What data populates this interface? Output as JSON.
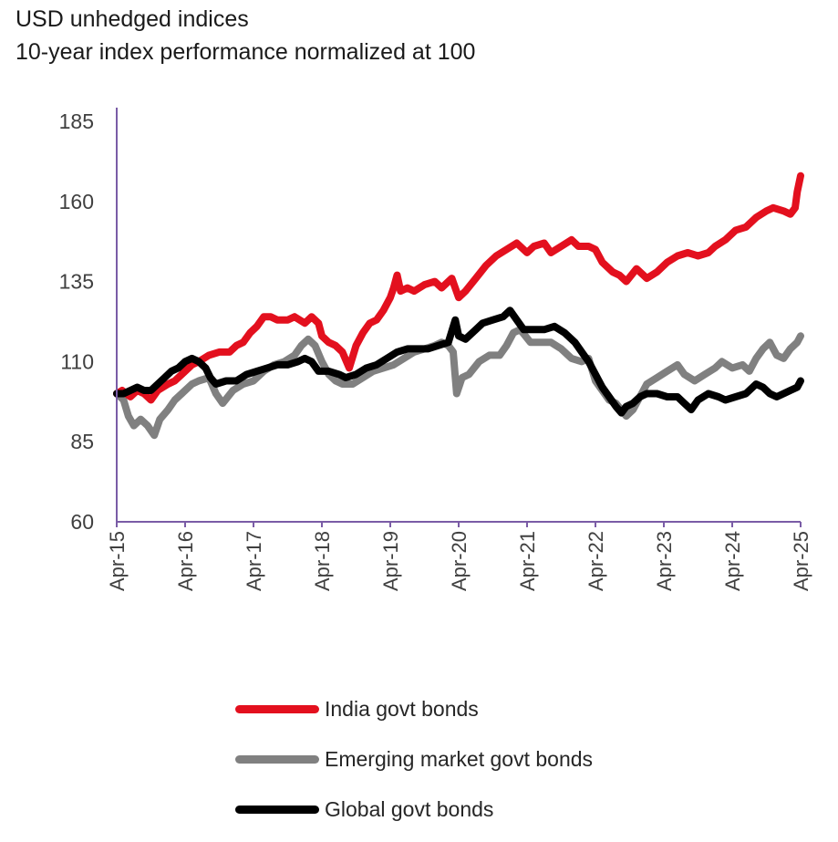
{
  "header": {
    "title": "USD unhedged indices",
    "subtitle": "10-year index performance normalized at 100"
  },
  "chart_data": {
    "type": "line",
    "title": "USD unhedged indices",
    "subtitle": "10-year index performance normalized at 100",
    "ylim": [
      60,
      185
    ],
    "yticks": [
      60,
      85,
      110,
      135,
      160,
      185
    ],
    "xlim": [
      2015.25,
      2025.25
    ],
    "xticks": [
      {
        "label": "Apr-15",
        "x": 2015.25
      },
      {
        "label": "Apr-16",
        "x": 2016.25
      },
      {
        "label": "Apr-17",
        "x": 2017.25
      },
      {
        "label": "Apr-18",
        "x": 2018.25
      },
      {
        "label": "Apr-19",
        "x": 2019.25
      },
      {
        "label": "Apr-20",
        "x": 2020.25
      },
      {
        "label": "Apr-21",
        "x": 2021.25
      },
      {
        "label": "Apr-22",
        "x": 2022.25
      },
      {
        "label": "Apr-23",
        "x": 2023.25
      },
      {
        "label": "Apr-24",
        "x": 2024.25
      },
      {
        "label": "Apr-25",
        "x": 2025.25
      }
    ],
    "grid": false,
    "legend_position": "bottom",
    "series": [
      {
        "name": "India govt bonds",
        "color": "#e3101e",
        "points": [
          [
            2015.25,
            100
          ],
          [
            2015.33,
            101
          ],
          [
            2015.45,
            99
          ],
          [
            2015.55,
            101
          ],
          [
            2015.65,
            100
          ],
          [
            2015.75,
            98
          ],
          [
            2015.85,
            101
          ],
          [
            2016.0,
            103
          ],
          [
            2016.1,
            104
          ],
          [
            2016.2,
            106
          ],
          [
            2016.35,
            109
          ],
          [
            2016.45,
            110
          ],
          [
            2016.6,
            112
          ],
          [
            2016.75,
            113
          ],
          [
            2016.9,
            113
          ],
          [
            2017.0,
            115
          ],
          [
            2017.1,
            116
          ],
          [
            2017.2,
            119
          ],
          [
            2017.3,
            121
          ],
          [
            2017.4,
            124
          ],
          [
            2017.5,
            124
          ],
          [
            2017.6,
            123
          ],
          [
            2017.75,
            123
          ],
          [
            2017.85,
            124
          ],
          [
            2018.0,
            122
          ],
          [
            2018.1,
            124
          ],
          [
            2018.2,
            122
          ],
          [
            2018.25,
            118
          ],
          [
            2018.35,
            116
          ],
          [
            2018.45,
            115
          ],
          [
            2018.55,
            113
          ],
          [
            2018.65,
            108
          ],
          [
            2018.75,
            115
          ],
          [
            2018.85,
            119
          ],
          [
            2018.95,
            122
          ],
          [
            2019.05,
            123
          ],
          [
            2019.15,
            126
          ],
          [
            2019.25,
            130
          ],
          [
            2019.3,
            133
          ],
          [
            2019.35,
            137
          ],
          [
            2019.4,
            132
          ],
          [
            2019.5,
            133
          ],
          [
            2019.6,
            132
          ],
          [
            2019.75,
            134
          ],
          [
            2019.9,
            135
          ],
          [
            2020.0,
            133
          ],
          [
            2020.15,
            136
          ],
          [
            2020.25,
            130
          ],
          [
            2020.35,
            132
          ],
          [
            2020.5,
            136
          ],
          [
            2020.65,
            140
          ],
          [
            2020.8,
            143
          ],
          [
            2020.95,
            145
          ],
          [
            2021.1,
            147
          ],
          [
            2021.25,
            144
          ],
          [
            2021.35,
            146
          ],
          [
            2021.5,
            147
          ],
          [
            2021.6,
            144
          ],
          [
            2021.75,
            146
          ],
          [
            2021.9,
            148
          ],
          [
            2022.0,
            146
          ],
          [
            2022.15,
            146
          ],
          [
            2022.25,
            145
          ],
          [
            2022.35,
            141
          ],
          [
            2022.5,
            138
          ],
          [
            2022.6,
            137
          ],
          [
            2022.7,
            135
          ],
          [
            2022.85,
            139
          ],
          [
            2023.0,
            136
          ],
          [
            2023.15,
            138
          ],
          [
            2023.3,
            141
          ],
          [
            2023.45,
            143
          ],
          [
            2023.6,
            144
          ],
          [
            2023.75,
            143
          ],
          [
            2023.9,
            144
          ],
          [
            2024.0,
            146
          ],
          [
            2024.15,
            148
          ],
          [
            2024.3,
            151
          ],
          [
            2024.45,
            152
          ],
          [
            2024.6,
            155
          ],
          [
            2024.75,
            157
          ],
          [
            2024.85,
            158
          ],
          [
            2025.0,
            157
          ],
          [
            2025.1,
            156
          ],
          [
            2025.17,
            158
          ],
          [
            2025.2,
            163
          ],
          [
            2025.25,
            168
          ]
        ]
      },
      {
        "name": "Emerging market govt bonds",
        "color": "#808080",
        "points": [
          [
            2015.25,
            100
          ],
          [
            2015.35,
            98
          ],
          [
            2015.42,
            93
          ],
          [
            2015.5,
            90
          ],
          [
            2015.6,
            92
          ],
          [
            2015.7,
            90
          ],
          [
            2015.8,
            87
          ],
          [
            2015.88,
            92
          ],
          [
            2016.0,
            95
          ],
          [
            2016.1,
            98
          ],
          [
            2016.2,
            100
          ],
          [
            2016.35,
            103
          ],
          [
            2016.45,
            104
          ],
          [
            2016.6,
            105
          ],
          [
            2016.7,
            100
          ],
          [
            2016.8,
            97
          ],
          [
            2016.95,
            101
          ],
          [
            2017.1,
            103
          ],
          [
            2017.25,
            104
          ],
          [
            2017.4,
            107
          ],
          [
            2017.55,
            109
          ],
          [
            2017.7,
            110
          ],
          [
            2017.85,
            112
          ],
          [
            2017.95,
            115
          ],
          [
            2018.05,
            117
          ],
          [
            2018.15,
            115
          ],
          [
            2018.25,
            110
          ],
          [
            2018.35,
            106
          ],
          [
            2018.45,
            104
          ],
          [
            2018.55,
            103
          ],
          [
            2018.7,
            103
          ],
          [
            2018.85,
            105
          ],
          [
            2019.0,
            107
          ],
          [
            2019.15,
            108
          ],
          [
            2019.3,
            109
          ],
          [
            2019.45,
            111
          ],
          [
            2019.6,
            113
          ],
          [
            2019.75,
            114
          ],
          [
            2019.9,
            115
          ],
          [
            2020.0,
            116
          ],
          [
            2020.1,
            115
          ],
          [
            2020.17,
            113
          ],
          [
            2020.22,
            100
          ],
          [
            2020.3,
            105
          ],
          [
            2020.4,
            106
          ],
          [
            2020.55,
            110
          ],
          [
            2020.7,
            112
          ],
          [
            2020.85,
            112
          ],
          [
            2020.95,
            115
          ],
          [
            2021.05,
            119
          ],
          [
            2021.15,
            120
          ],
          [
            2021.3,
            116
          ],
          [
            2021.45,
            116
          ],
          [
            2021.6,
            116
          ],
          [
            2021.75,
            114
          ],
          [
            2021.9,
            111
          ],
          [
            2022.05,
            110
          ],
          [
            2022.15,
            111
          ],
          [
            2022.25,
            104
          ],
          [
            2022.35,
            101
          ],
          [
            2022.45,
            98
          ],
          [
            2022.55,
            97
          ],
          [
            2022.7,
            93
          ],
          [
            2022.8,
            95
          ],
          [
            2022.9,
            99
          ],
          [
            2023.0,
            103
          ],
          [
            2023.15,
            105
          ],
          [
            2023.3,
            107
          ],
          [
            2023.45,
            109
          ],
          [
            2023.55,
            106
          ],
          [
            2023.7,
            104
          ],
          [
            2023.85,
            106
          ],
          [
            2024.0,
            108
          ],
          [
            2024.1,
            110
          ],
          [
            2024.25,
            108
          ],
          [
            2024.4,
            109
          ],
          [
            2024.5,
            107
          ],
          [
            2024.6,
            111
          ],
          [
            2024.7,
            114
          ],
          [
            2024.8,
            116
          ],
          [
            2024.9,
            112
          ],
          [
            2025.0,
            111
          ],
          [
            2025.1,
            114
          ],
          [
            2025.2,
            116
          ],
          [
            2025.25,
            118
          ]
        ]
      },
      {
        "name": "Global govt bonds",
        "color": "#000000",
        "points": [
          [
            2015.25,
            100
          ],
          [
            2015.35,
            100
          ],
          [
            2015.45,
            101
          ],
          [
            2015.55,
            102
          ],
          [
            2015.65,
            101
          ],
          [
            2015.75,
            101
          ],
          [
            2015.85,
            103
          ],
          [
            2015.95,
            105
          ],
          [
            2016.05,
            107
          ],
          [
            2016.15,
            108
          ],
          [
            2016.25,
            110
          ],
          [
            2016.35,
            111
          ],
          [
            2016.45,
            110
          ],
          [
            2016.55,
            108
          ],
          [
            2016.62,
            105
          ],
          [
            2016.7,
            103
          ],
          [
            2016.85,
            104
          ],
          [
            2017.0,
            104
          ],
          [
            2017.15,
            106
          ],
          [
            2017.3,
            107
          ],
          [
            2017.45,
            108
          ],
          [
            2017.6,
            109
          ],
          [
            2017.75,
            109
          ],
          [
            2017.9,
            110
          ],
          [
            2018.0,
            111
          ],
          [
            2018.1,
            110
          ],
          [
            2018.2,
            107
          ],
          [
            2018.35,
            107
          ],
          [
            2018.5,
            106
          ],
          [
            2018.6,
            105
          ],
          [
            2018.75,
            106
          ],
          [
            2018.9,
            108
          ],
          [
            2019.05,
            109
          ],
          [
            2019.2,
            111
          ],
          [
            2019.35,
            113
          ],
          [
            2019.5,
            114
          ],
          [
            2019.65,
            114
          ],
          [
            2019.8,
            114
          ],
          [
            2019.95,
            115
          ],
          [
            2020.1,
            116
          ],
          [
            2020.2,
            123
          ],
          [
            2020.25,
            118
          ],
          [
            2020.35,
            117
          ],
          [
            2020.5,
            120
          ],
          [
            2020.6,
            122
          ],
          [
            2020.75,
            123
          ],
          [
            2020.9,
            124
          ],
          [
            2021.0,
            126
          ],
          [
            2021.1,
            123
          ],
          [
            2021.2,
            120
          ],
          [
            2021.35,
            120
          ],
          [
            2021.5,
            120
          ],
          [
            2021.65,
            121
          ],
          [
            2021.8,
            119
          ],
          [
            2021.95,
            116
          ],
          [
            2022.05,
            113
          ],
          [
            2022.15,
            110
          ],
          [
            2022.25,
            106
          ],
          [
            2022.35,
            102
          ],
          [
            2022.45,
            99
          ],
          [
            2022.55,
            96
          ],
          [
            2022.63,
            94
          ],
          [
            2022.7,
            96
          ],
          [
            2022.8,
            97
          ],
          [
            2022.9,
            99
          ],
          [
            2023.0,
            100
          ],
          [
            2023.15,
            100
          ],
          [
            2023.3,
            99
          ],
          [
            2023.45,
            99
          ],
          [
            2023.55,
            97
          ],
          [
            2023.65,
            95
          ],
          [
            2023.75,
            98
          ],
          [
            2023.9,
            100
          ],
          [
            2024.05,
            99
          ],
          [
            2024.15,
            98
          ],
          [
            2024.3,
            99
          ],
          [
            2024.45,
            100
          ],
          [
            2024.6,
            103
          ],
          [
            2024.7,
            102
          ],
          [
            2024.8,
            100
          ],
          [
            2024.9,
            99
          ],
          [
            2025.0,
            100
          ],
          [
            2025.1,
            101
          ],
          [
            2025.2,
            102
          ],
          [
            2025.25,
            104
          ]
        ]
      }
    ]
  }
}
